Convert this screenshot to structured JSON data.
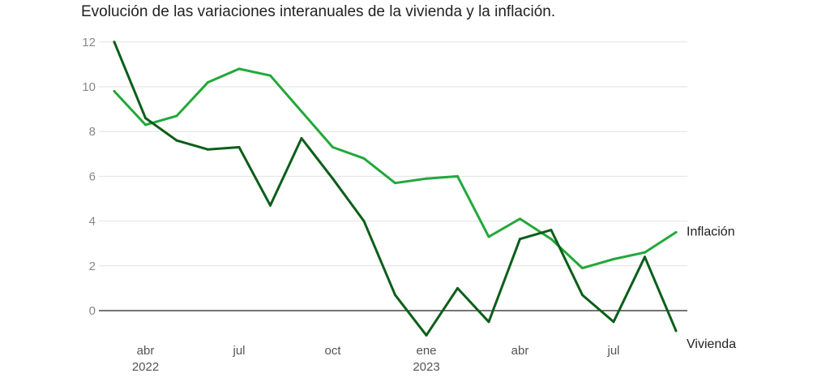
{
  "chart_data": {
    "type": "line",
    "title": "Evolución de las variaciones interanuales de la vivienda y la inflación.",
    "xlabel": "",
    "ylabel": "",
    "ylim": [
      -1.2,
      12
    ],
    "y_ticks": [
      0,
      2,
      4,
      6,
      8,
      10,
      12
    ],
    "x_ticks": [
      {
        "index": 1,
        "label": "abr",
        "sublabel": "2022"
      },
      {
        "index": 4,
        "label": "jul",
        "sublabel": ""
      },
      {
        "index": 7,
        "label": "oct",
        "sublabel": ""
      },
      {
        "index": 10,
        "label": "ene",
        "sublabel": "2023"
      },
      {
        "index": 13,
        "label": "abr",
        "sublabel": ""
      },
      {
        "index": 16,
        "label": "jul",
        "sublabel": ""
      }
    ],
    "x": [
      "2022-03",
      "2022-04",
      "2022-05",
      "2022-06",
      "2022-07",
      "2022-08",
      "2022-09",
      "2022-10",
      "2022-11",
      "2022-12",
      "2023-01",
      "2023-02",
      "2023-03",
      "2023-04",
      "2023-05",
      "2023-06",
      "2023-07",
      "2023-08",
      "2023-09"
    ],
    "grid": true,
    "series": [
      {
        "name": "Inflación",
        "color": "#22a83a",
        "values": [
          9.8,
          8.3,
          8.7,
          10.2,
          10.8,
          10.5,
          8.9,
          7.3,
          6.8,
          5.7,
          5.9,
          6.0,
          3.3,
          4.1,
          3.2,
          1.9,
          2.3,
          2.6,
          3.5
        ]
      },
      {
        "name": "Vivienda",
        "color": "#0b5e1a",
        "values": [
          12.0,
          8.6,
          7.6,
          7.2,
          7.3,
          4.7,
          7.7,
          5.9,
          4.0,
          0.7,
          -1.1,
          1.0,
          -0.5,
          3.2,
          3.6,
          0.7,
          -0.5,
          2.4,
          -0.9
        ]
      }
    ]
  }
}
